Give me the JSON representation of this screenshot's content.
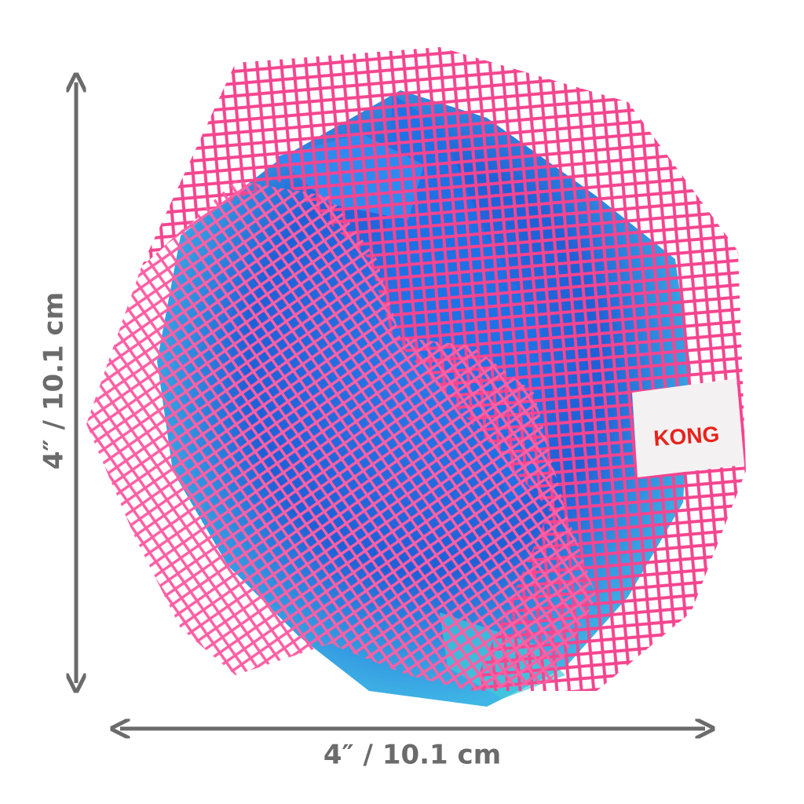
{
  "dimensions": {
    "height_label": "4″ / 10.1 cm",
    "width_label": "4″ / 10.1 cm"
  },
  "product": {
    "brand_tag": "KONG"
  }
}
